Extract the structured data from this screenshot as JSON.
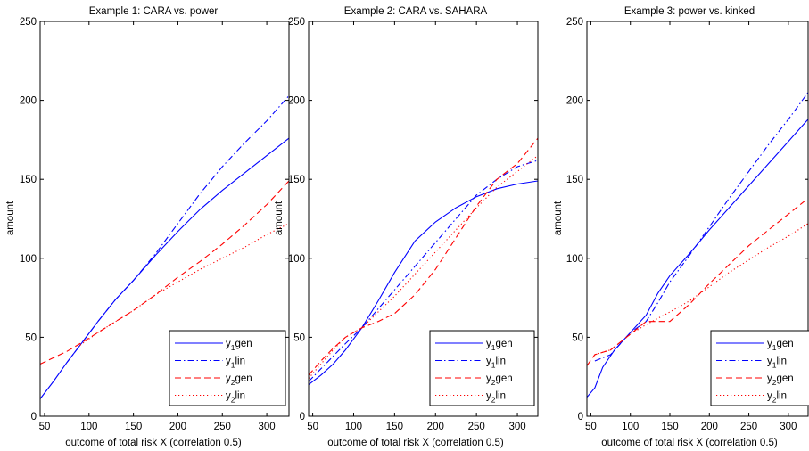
{
  "colors": {
    "y1": "#0000ff",
    "y2": "#ff0000",
    "axis": "#000000",
    "legend_bg": "#ffffff"
  },
  "legend_entries": [
    {
      "base": "y",
      "sub": "1",
      "suffix": "gen",
      "series": "y1gen",
      "color": "#0000ff",
      "dash": "solid"
    },
    {
      "base": "y",
      "sub": "1",
      "suffix": "lin",
      "series": "y1lin",
      "color": "#0000ff",
      "dash": "dashdot"
    },
    {
      "base": "y",
      "sub": "2",
      "suffix": "gen",
      "series": "y2gen",
      "color": "#ff0000",
      "dash": "dashed"
    },
    {
      "base": "y",
      "sub": "2",
      "suffix": "lin",
      "series": "y2lin",
      "color": "#ff0000",
      "dash": "dotted"
    }
  ],
  "chart_data": [
    {
      "type": "line",
      "title": "Example 1: CARA vs. power",
      "xlabel": "outcome of total risk X (correlation 0.5)",
      "ylabel": "amount",
      "xlim": [
        45,
        325
      ],
      "ylim": [
        0,
        250
      ],
      "xticks": [
        50,
        100,
        150,
        200,
        250,
        300
      ],
      "yticks": [
        0,
        50,
        100,
        150,
        200,
        250
      ],
      "grid": false,
      "legend_position": "bottom-right",
      "series": [
        {
          "name": "y1gen",
          "color": "#0000ff",
          "dash": "solid",
          "x": [
            45,
            60,
            75,
            90,
            110,
            130,
            150,
            175,
            200,
            225,
            250,
            275,
            300,
            325
          ],
          "y": [
            11,
            22,
            34,
            45,
            60,
            74,
            86,
            102,
            117,
            131,
            143,
            154,
            165,
            176
          ]
        },
        {
          "name": "y1lin",
          "color": "#0000ff",
          "dash": "dashdot",
          "x": [
            75,
            90,
            110,
            130,
            150,
            175,
            200,
            225,
            250,
            275,
            300,
            325
          ],
          "y": [
            34,
            45,
            60,
            74,
            86,
            103,
            122,
            141,
            158,
            173,
            187,
            203
          ]
        },
        {
          "name": "y2gen",
          "color": "#ff0000",
          "dash": "dashed",
          "x": [
            45,
            60,
            75,
            90,
            110,
            130,
            150,
            175,
            200,
            225,
            250,
            275,
            300,
            325
          ],
          "y": [
            33,
            37,
            41,
            46,
            53,
            60,
            67,
            77,
            88,
            98,
            109,
            121,
            134,
            149
          ]
        },
        {
          "name": "y2lin",
          "color": "#ff0000",
          "dash": "dotted",
          "x": [
            90,
            110,
            130,
            150,
            175,
            200,
            225,
            250,
            275,
            300,
            325
          ],
          "y": [
            45,
            53,
            60,
            67,
            77,
            85,
            93,
            100,
            107,
            115,
            122
          ]
        }
      ]
    },
    {
      "type": "line",
      "title": "Example 2: CARA vs. SAHARA",
      "xlabel": "outcome of total risk X (correlation 0.5)",
      "ylabel": "amount",
      "xlim": [
        45,
        325
      ],
      "ylim": [
        0,
        250
      ],
      "xticks": [
        50,
        100,
        150,
        200,
        250,
        300
      ],
      "yticks": [
        0,
        50,
        100,
        150,
        200,
        250
      ],
      "grid": false,
      "legend_position": "bottom-right",
      "series": [
        {
          "name": "y1gen",
          "color": "#0000ff",
          "dash": "solid",
          "x": [
            45,
            60,
            75,
            90,
            110,
            130,
            150,
            175,
            200,
            225,
            250,
            275,
            300,
            325
          ],
          "y": [
            20,
            26,
            33,
            42,
            56,
            73,
            91,
            111,
            123,
            132,
            139,
            144,
            147,
            149
          ]
        },
        {
          "name": "y1lin",
          "color": "#0000ff",
          "dash": "dashdot",
          "x": [
            45,
            60,
            75,
            90,
            110,
            130,
            150,
            175,
            200,
            225,
            250,
            275,
            300,
            325
          ],
          "y": [
            22,
            30,
            38,
            46,
            56,
            68,
            80,
            95,
            110,
            125,
            140,
            150,
            158,
            162
          ]
        },
        {
          "name": "y2gen",
          "color": "#ff0000",
          "dash": "dashed",
          "x": [
            45,
            60,
            75,
            90,
            110,
            130,
            150,
            175,
            200,
            225,
            250,
            275,
            300,
            325
          ],
          "y": [
            26,
            35,
            43,
            50,
            56,
            60,
            65,
            77,
            93,
            113,
            133,
            150,
            160,
            176
          ]
        },
        {
          "name": "y2lin",
          "color": "#ff0000",
          "dash": "dotted",
          "x": [
            45,
            60,
            75,
            90,
            110,
            130,
            150,
            175,
            200,
            225,
            250,
            275,
            300,
            325
          ],
          "y": [
            24,
            33,
            42,
            50,
            56,
            66,
            76,
            90,
            104,
            118,
            132,
            145,
            155,
            165
          ]
        }
      ]
    },
    {
      "type": "line",
      "title": "Example 3: power vs. kinked",
      "xlabel": "outcome of total risk X (correlation 0.5)",
      "ylabel": "amount",
      "xlim": [
        45,
        325
      ],
      "ylim": [
        0,
        250
      ],
      "xticks": [
        50,
        100,
        150,
        200,
        250,
        300
      ],
      "yticks": [
        0,
        50,
        100,
        150,
        200,
        250
      ],
      "grid": false,
      "legend_position": "bottom-right",
      "series": [
        {
          "name": "y1gen",
          "color": "#0000ff",
          "dash": "solid",
          "x": [
            45,
            55,
            65,
            80,
            100,
            120,
            135,
            150,
            175,
            200,
            225,
            250,
            275,
            300,
            325
          ],
          "y": [
            12,
            18,
            31,
            42,
            53,
            64,
            78,
            89,
            103,
            118,
            132,
            146,
            160,
            174,
            188
          ]
        },
        {
          "name": "y1lin",
          "color": "#0000ff",
          "dash": "dashdot",
          "x": [
            55,
            75,
            100,
            120,
            135,
            150,
            175,
            200,
            225,
            250,
            275,
            300,
            325
          ],
          "y": [
            35,
            39,
            53,
            60,
            72,
            85,
            102,
            120,
            138,
            155,
            172,
            188,
            205
          ]
        },
        {
          "name": "y2gen",
          "color": "#ff0000",
          "dash": "dashed",
          "x": [
            45,
            55,
            75,
            100,
            120,
            135,
            150,
            175,
            200,
            225,
            250,
            275,
            300,
            325
          ],
          "y": [
            32,
            39,
            42,
            52,
            60,
            60,
            60,
            71,
            84,
            96,
            108,
            118,
            128,
            138
          ]
        },
        {
          "name": "y2lin",
          "color": "#ff0000",
          "dash": "dotted",
          "x": [
            55,
            75,
            100,
            120,
            135,
            150,
            175,
            200,
            225,
            250,
            275,
            300,
            325
          ],
          "y": [
            39,
            42,
            52,
            58,
            62,
            66,
            73,
            82,
            91,
            99,
            107,
            114,
            122
          ]
        }
      ]
    }
  ]
}
